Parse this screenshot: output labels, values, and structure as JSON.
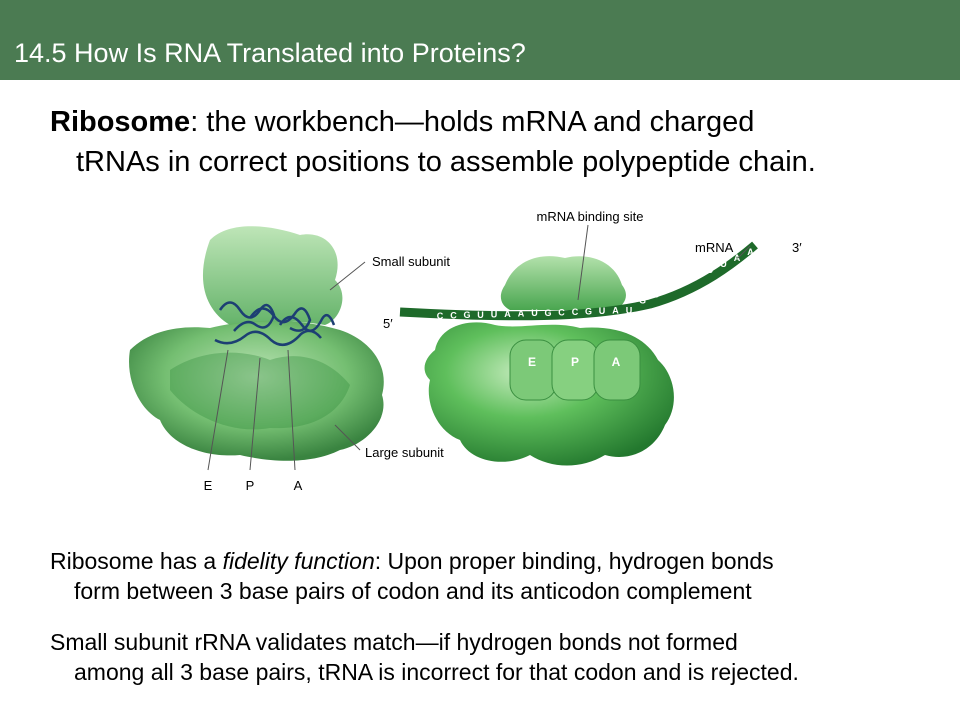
{
  "slide": {
    "title": "14.5 How Is RNA Translated into Proteins?",
    "heading": {
      "term": "Ribosome",
      "rest_line1": ": the workbench—holds mRNA and charged",
      "line2": "tRNAs in correct positions to assemble polypeptide chain."
    },
    "para1": {
      "prefix": "Ribosome has a ",
      "italic": "fidelity function",
      "rest_line1": ": Upon proper binding, hydrogen bonds",
      "line2": "form between 3 base pairs of codon and its anticodon complement"
    },
    "para2": {
      "line1": "Small subunit rRNA validates match—if hydrogen bonds not formed",
      "line2": "among all 3 base pairs, tRNA is incorrect for that codon and is rejected."
    }
  },
  "figure": {
    "labels": {
      "small_subunit": "Small subunit",
      "large_subunit": "Large subunit",
      "mrna_binding_site": "mRNA binding site",
      "mrna": "mRNA",
      "five_prime": "5′",
      "three_prime": "3′"
    },
    "left_sites": [
      "E",
      "P",
      "A"
    ],
    "right_sites": [
      "E",
      "P",
      "A"
    ],
    "codons": [
      "C",
      "C",
      "G",
      "U",
      "U",
      "A",
      "A",
      "U",
      "G",
      "C",
      "C",
      "G",
      "U",
      "A",
      "U",
      "G",
      "C",
      "U",
      "C",
      "U",
      "U",
      "U",
      "A",
      "A"
    ],
    "colors": {
      "title_bar": "#4b7b52",
      "ribosome_light": "#8fca8a",
      "ribosome_dark": "#2f8a3a",
      "mrna_strand": "#1e6a2a"
    }
  }
}
